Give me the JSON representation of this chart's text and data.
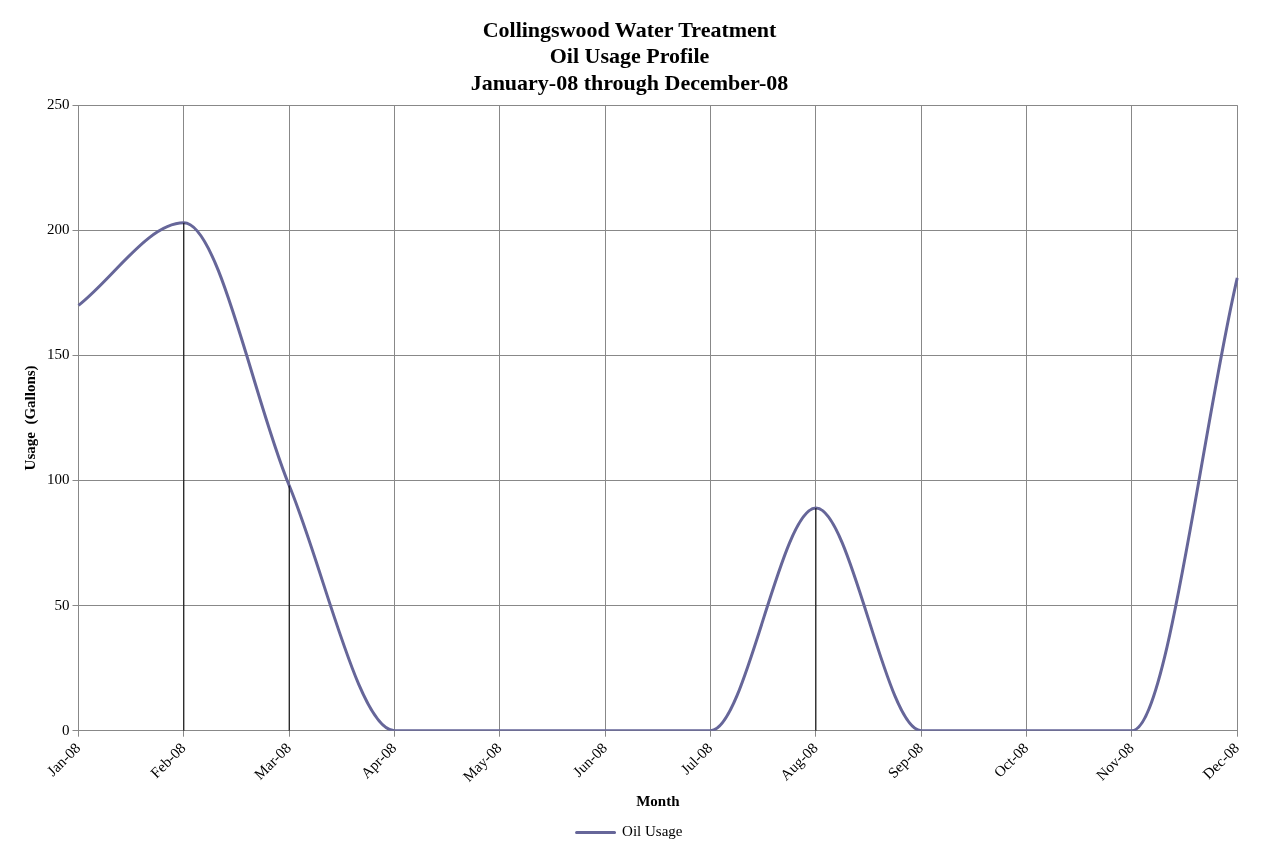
{
  "chart_data": {
    "type": "line",
    "title": "Collingswood Water Treatment\nOil Usage Profile\nJanuary-08 through December-08",
    "xlabel": "Month",
    "ylabel": "Usage  (Gallons)",
    "categories": [
      "Jan-08",
      "Feb-08",
      "Mar-08",
      "Apr-08",
      "May-08",
      "Jun-08",
      "Jul-08",
      "Aug-08",
      "Sep-08",
      "Oct-08",
      "Nov-08",
      "Dec-08"
    ],
    "series": [
      {
        "name": "Oil Usage",
        "color": "#666699",
        "values": [
          170,
          203,
          98,
          0,
          0,
          0,
          0,
          89,
          0,
          0,
          0,
          181
        ],
        "errors": [
          null,
          [
            0,
            203
          ],
          [
            0,
            98
          ],
          null,
          null,
          null,
          null,
          [
            0,
            89
          ],
          null,
          null,
          null,
          null
        ]
      }
    ],
    "ylim": [
      0,
      250
    ],
    "yticks": [
      0,
      50,
      100,
      150,
      200,
      250
    ],
    "grid": true,
    "legend": "bottom",
    "marker": "none",
    "line_style": "solid"
  }
}
